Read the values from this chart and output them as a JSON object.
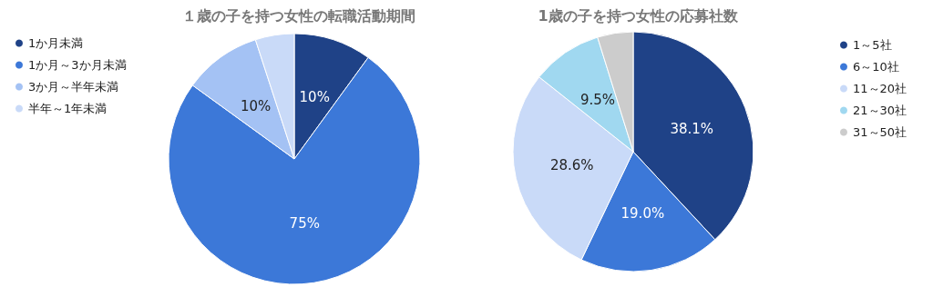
{
  "chart_data": [
    {
      "type": "pie",
      "title": "１歳の子を持つ女性の転職活動期間",
      "categories": [
        "1か月未満",
        "1か月～3か月未満",
        "3か月～半年未満",
        "半年～1年未満"
      ],
      "values": [
        10,
        75,
        10,
        5
      ],
      "colors": [
        "#1f4287",
        "#3c78d8",
        "#a4c2f4",
        "#c9daf8"
      ],
      "value_labels": [
        "10%",
        "75%",
        "10%",
        null
      ],
      "legend": "top left"
    },
    {
      "type": "pie",
      "title": "1歳の子を持つ女性の応募社数",
      "categories": [
        "1～5社",
        "6～10社",
        "11～20社",
        "21～30社",
        "31～50社"
      ],
      "values": [
        38.1,
        19.0,
        28.6,
        9.5,
        4.8
      ],
      "colors": [
        "#1f4287",
        "#3c78d8",
        "#c9daf8",
        "#a0d8f0",
        "#cccccc"
      ],
      "value_labels": [
        "38.1%",
        "19.0%",
        "28.6%",
        "9.5%",
        null
      ],
      "legend": "right"
    }
  ]
}
